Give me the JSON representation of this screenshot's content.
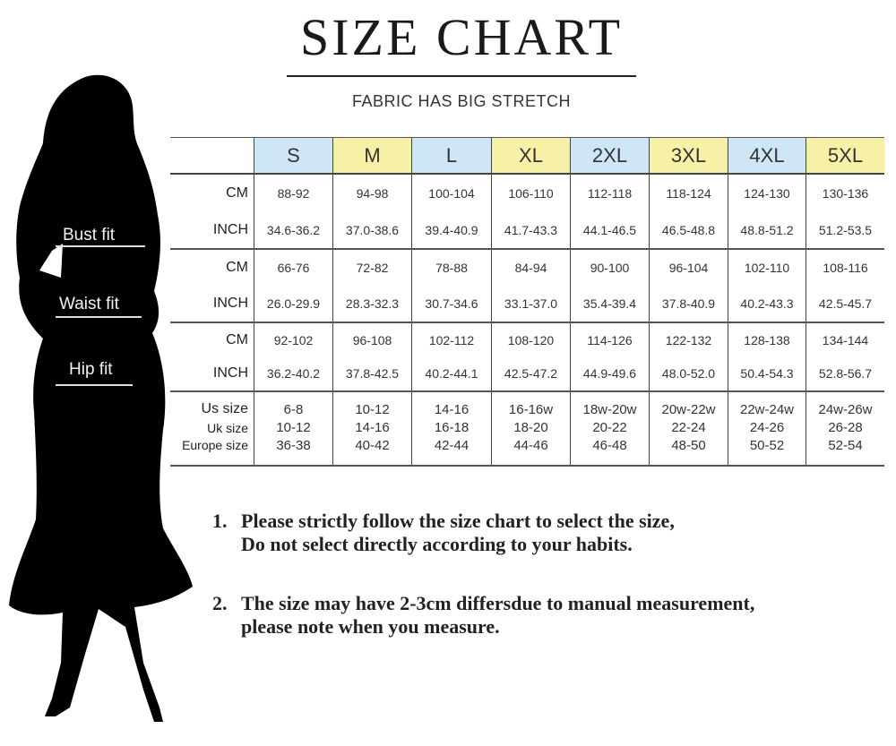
{
  "title": "SIZE CHART",
  "subtitle": "FABRIC HAS BIG STRETCH",
  "fit_labels": {
    "bust": "Bust fit",
    "waist": "Waist fit",
    "hip": "Hip fit"
  },
  "sizes": [
    {
      "label": "S",
      "color": "#cfe6f7"
    },
    {
      "label": "M",
      "color": "#f7f1a8"
    },
    {
      "label": "L",
      "color": "#cfe6f7"
    },
    {
      "label": "XL",
      "color": "#f7f1a8"
    },
    {
      "label": "2XL",
      "color": "#cfe6f7"
    },
    {
      "label": "3XL",
      "color": "#f7f1a8"
    },
    {
      "label": "4XL",
      "color": "#cfe6f7"
    },
    {
      "label": "5XL",
      "color": "#f7f1a8"
    }
  ],
  "rows": [
    {
      "group": "bust",
      "label": "CM",
      "values": [
        "88-92",
        "94-98",
        "100-104",
        "106-110",
        "112-118",
        "118-124",
        "124-130",
        "130-136"
      ]
    },
    {
      "group": "bust",
      "label": "INCH",
      "values": [
        "34.6-36.2",
        "37.0-38.6",
        "39.4-40.9",
        "41.7-43.3",
        "44.1-46.5",
        "46.5-48.8",
        "48.8-51.2",
        "51.2-53.5"
      ]
    },
    {
      "group": "waist",
      "label": "CM",
      "values": [
        "66-76",
        "72-82",
        "78-88",
        "84-94",
        "90-100",
        "96-104",
        "102-110",
        "108-116"
      ]
    },
    {
      "group": "waist",
      "label": "INCH",
      "values": [
        "26.0-29.9",
        "28.3-32.3",
        "30.7-34.6",
        "33.1-37.0",
        "35.4-39.4",
        "37.8-40.9",
        "40.2-43.3",
        "42.5-45.7"
      ]
    },
    {
      "group": "hip",
      "label": "CM",
      "values": [
        "92-102",
        "96-108",
        "102-112",
        "108-120",
        "114-126",
        "122-132",
        "128-138",
        "134-144"
      ]
    },
    {
      "group": "hip",
      "label": "INCH",
      "values": [
        "36.2-40.2",
        "37.8-42.5",
        "40.2-44.1",
        "42.5-47.2",
        "44.9-49.6",
        "48.0-52.0",
        "50.4-54.3",
        "52.8-56.7"
      ]
    },
    {
      "group": "conv",
      "label": "Us size",
      "values": [
        "6-8",
        "10-12",
        "14-16",
        "16-16w",
        "18w-20w",
        "20w-22w",
        "22w-24w",
        "24w-26w"
      ]
    },
    {
      "group": "conv",
      "label": "Uk size",
      "values": [
        "10-12",
        "14-16",
        "16-18",
        "18-20",
        "20-22",
        "22-24",
        "24-26",
        "26-28"
      ]
    },
    {
      "group": "conv",
      "label": "Europe size",
      "values": [
        "36-38",
        "40-42",
        "42-44",
        "44-46",
        "46-48",
        "48-50",
        "50-52",
        "52-54"
      ]
    }
  ],
  "notes": [
    {
      "num": "1.",
      "lines": [
        "Please strictly follow the size chart to select the size,",
        "Do not select directly according to your habits."
      ]
    },
    {
      "num": "2.",
      "lines": [
        "The size may have 2-3cm differsdue to manual measurement,",
        "please note when you measure."
      ]
    }
  ]
}
